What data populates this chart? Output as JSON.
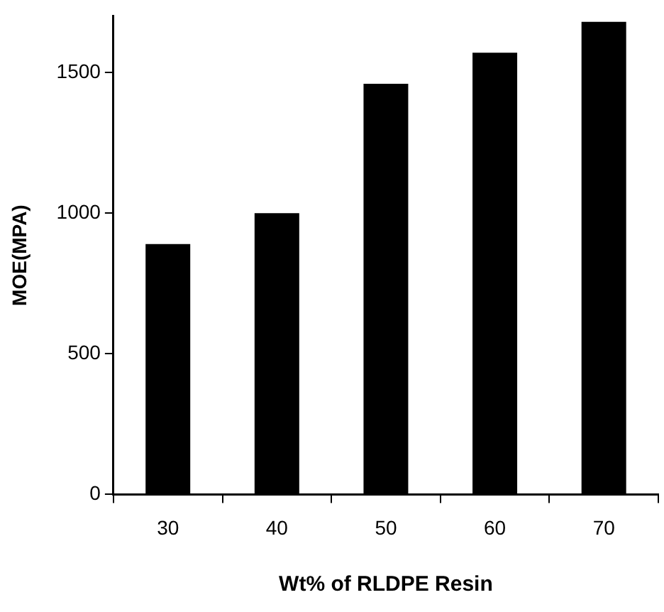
{
  "chart_data": {
    "type": "bar",
    "xlabel": "Wt% of RLDPE Resin",
    "ylabel": "MOE(MPA)",
    "categories": [
      "30",
      "40",
      "50",
      "60",
      "70"
    ],
    "values": [
      890,
      1000,
      1460,
      1570,
      1680
    ],
    "color": "#000000",
    "ylim": [
      0,
      1700
    ],
    "yticks": [
      0,
      500,
      1000,
      1500
    ],
    "grid": false,
    "legend": false
  }
}
